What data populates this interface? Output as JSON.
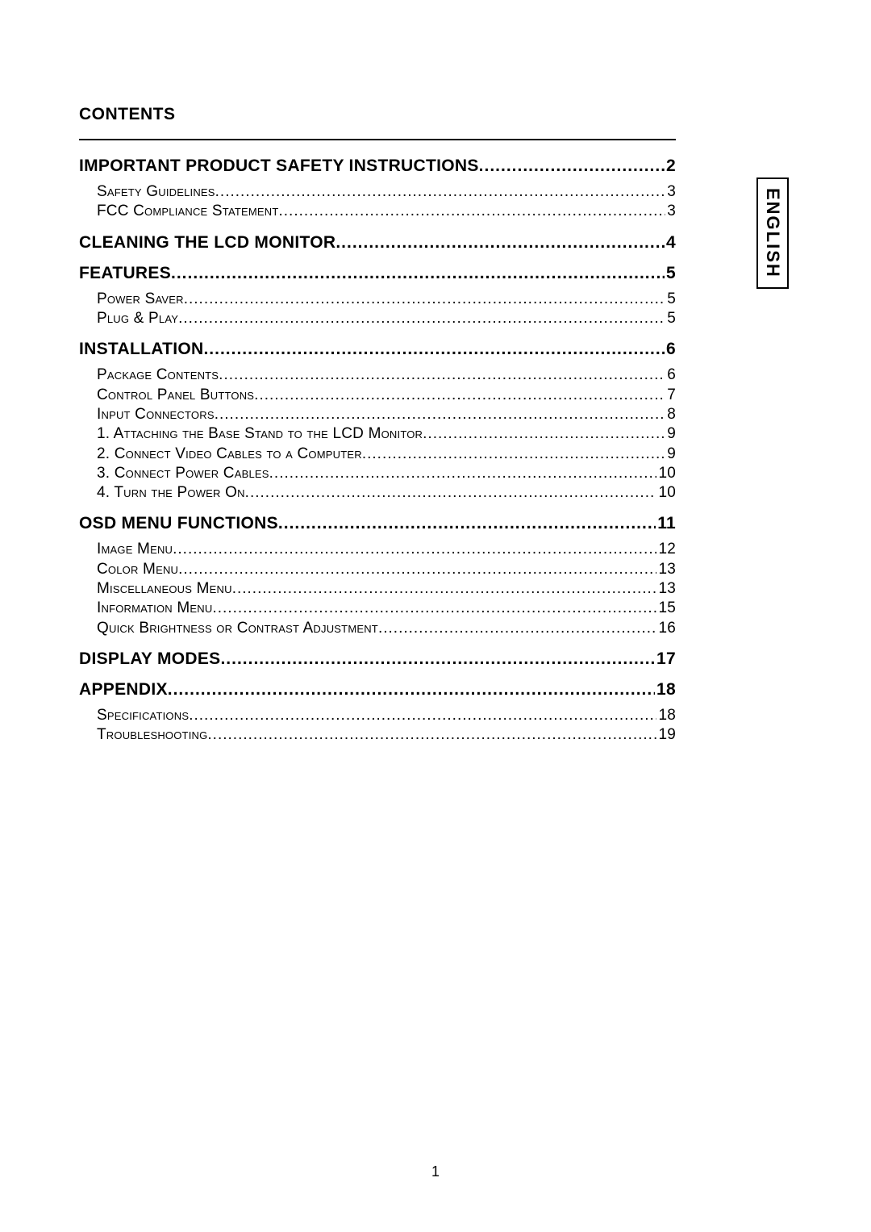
{
  "heading": "CONTENTS",
  "side_tab": "ENGLISH",
  "page_number": "1",
  "toc": [
    {
      "level": 1,
      "label": "IMPORTANT PRODUCT SAFETY INSTRUCTIONS",
      "page": "2"
    },
    {
      "level": 2,
      "label": "Safety Guidelines",
      "page": "3"
    },
    {
      "level": 2,
      "label": "FCC Compliance Statement",
      "page": "3"
    },
    {
      "level": 1,
      "label": "CLEANING THE LCD MONITOR",
      "page": "4"
    },
    {
      "level": 1,
      "label": "FEATURES",
      "page": "5"
    },
    {
      "level": 2,
      "label": "Power Saver",
      "page": "5"
    },
    {
      "level": 2,
      "label": "Plug & Play",
      "page": "5"
    },
    {
      "level": 1,
      "label": "INSTALLATION",
      "page": "6"
    },
    {
      "level": 2,
      "label": "Package Contents",
      "page": "6"
    },
    {
      "level": 2,
      "label": "Control Panel Buttons",
      "page": "7"
    },
    {
      "level": 2,
      "label": "Input Connectors",
      "page": "8"
    },
    {
      "level": 2,
      "label": "1. Attaching the Base Stand to the LCD Monitor",
      "page": "9"
    },
    {
      "level": 2,
      "label": "2. Connect Video Cables to a Computer",
      "page": "9"
    },
    {
      "level": 2,
      "label": "3. Connect Power Cables",
      "page": "10"
    },
    {
      "level": 2,
      "label": "4. Turn the Power On",
      "page": "10"
    },
    {
      "level": 1,
      "label": "OSD MENU FUNCTIONS",
      "page": "11"
    },
    {
      "level": 2,
      "label": "Image Menu",
      "page": "12"
    },
    {
      "level": 2,
      "label": "Color Menu",
      "page": "13"
    },
    {
      "level": 2,
      "label": "Miscellaneous Menu",
      "page": "13"
    },
    {
      "level": 2,
      "label": "Information Menu",
      "page": "15"
    },
    {
      "level": 2,
      "label": "Quick Brightness or Contrast Adjustment",
      "page": "16"
    },
    {
      "level": 1,
      "label": "DISPLAY MODES",
      "page": "17"
    },
    {
      "level": 1,
      "label": "APPENDIX",
      "page": "18"
    },
    {
      "level": 2,
      "label": "Specifications",
      "page": "18"
    },
    {
      "level": 2,
      "label": "Troubleshooting",
      "page": "19"
    }
  ]
}
